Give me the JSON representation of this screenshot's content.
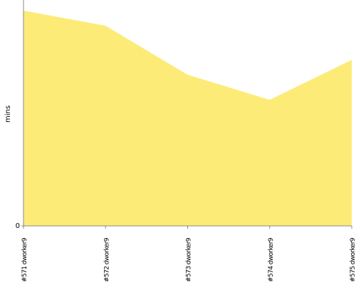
{
  "chart_data": {
    "type": "area",
    "y_label": "mins",
    "categories": [
      "#571 dworker9",
      "#572 dworker9",
      "#573 dworker9",
      "#574 dworker9",
      "#575 dworker9"
    ],
    "values": [
      95.3,
      88.6,
      66.9,
      55.8,
      73.5
    ],
    "color": "#fdeb78",
    "ylim": [
      0,
      100
    ],
    "yticks": [
      0
    ]
  }
}
